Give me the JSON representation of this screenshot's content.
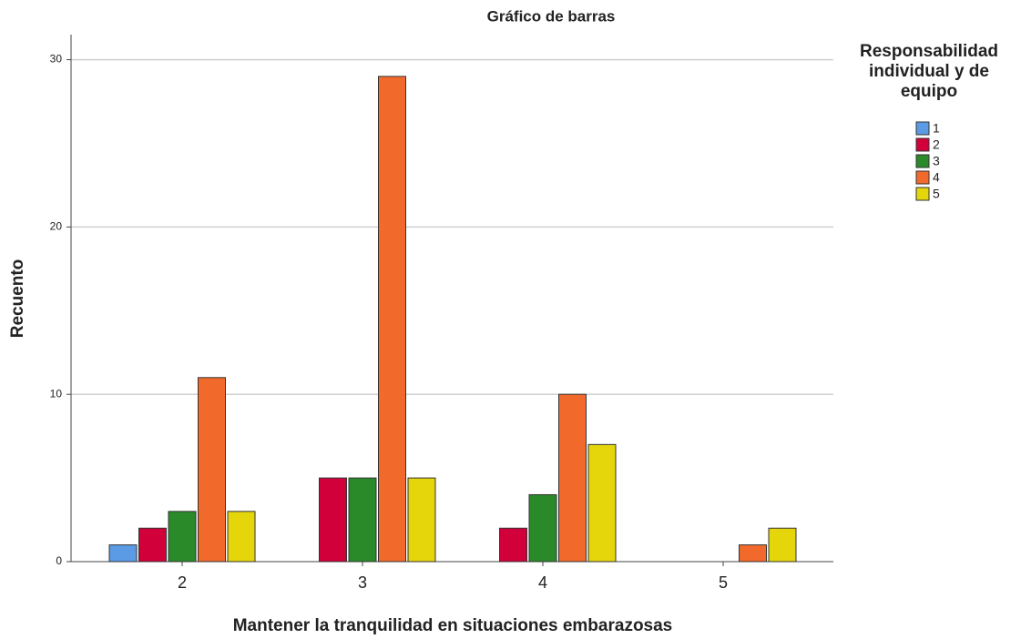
{
  "chart_data": {
    "type": "bar",
    "title": "Gráfico de barras",
    "x_label": "Mantener la tranquilidad en situaciones embarazosas",
    "y_label": "Recuento",
    "legend_title": "Responsabilidad individual y de equipo",
    "categories": [
      "2",
      "3",
      "4",
      "5"
    ],
    "series": [
      {
        "name": "1",
        "color": "#5b9be6",
        "values": [
          1,
          null,
          null,
          null
        ]
      },
      {
        "name": "2",
        "color": "#d2003a",
        "values": [
          2,
          5,
          2,
          null
        ]
      },
      {
        "name": "3",
        "color": "#2a8a2a",
        "values": [
          3,
          5,
          4,
          null
        ]
      },
      {
        "name": "4",
        "color": "#f26a2b",
        "values": [
          11,
          29,
          10,
          1
        ]
      },
      {
        "name": "5",
        "color": "#e5d60c",
        "values": [
          3,
          5,
          7,
          2
        ]
      }
    ],
    "ylim": [
      0,
      31.5
    ],
    "yticks": [
      0,
      10,
      20,
      30
    ],
    "grid": true,
    "legend": "right"
  }
}
